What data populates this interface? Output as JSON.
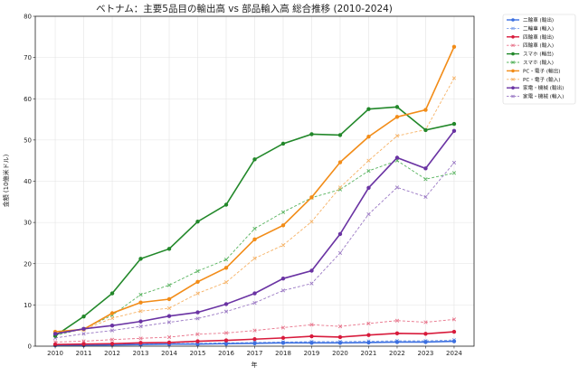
{
  "chart_data": {
    "type": "line",
    "title": "ベトナム：主要5品目の輸出高 vs 部品輸入高 総合推移 (2010-2024)",
    "xlabel": "年",
    "ylabel": "金額 (10億米ドル)",
    "x": [
      2010,
      2011,
      2012,
      2013,
      2014,
      2015,
      2016,
      2017,
      2018,
      2019,
      2020,
      2021,
      2022,
      2023,
      2024
    ],
    "ylim": [
      0,
      80
    ],
    "yticks": [
      0,
      10,
      20,
      30,
      40,
      50,
      60,
      70,
      80
    ],
    "grid": true,
    "legend_position": "outside-top-right",
    "series": [
      {
        "name": "二輪車 (輸出)",
        "color": "#3b6fe0",
        "style": "solid",
        "marker": "dot",
        "values": [
          0.2,
          0.2,
          0.3,
          0.4,
          0.5,
          0.5,
          0.6,
          0.7,
          0.8,
          0.8,
          0.8,
          0.9,
          1.0,
          1.0,
          1.2
        ]
      },
      {
        "name": "二輪車 (輸入)",
        "color": "#7da0ec",
        "style": "dashed",
        "marker": "x",
        "values": [
          0.3,
          0.3,
          0.4,
          0.5,
          0.6,
          0.7,
          0.8,
          0.9,
          1.0,
          1.1,
          1.1,
          1.2,
          1.3,
          1.3,
          1.5
        ]
      },
      {
        "name": "四輪車 (輸出)",
        "color": "#d81b3c",
        "style": "solid",
        "marker": "dot",
        "values": [
          0.4,
          0.5,
          0.6,
          0.8,
          0.9,
          1.2,
          1.4,
          1.7,
          2.0,
          2.4,
          2.2,
          2.7,
          3.1,
          3.0,
          3.5
        ]
      },
      {
        "name": "四輪車 (輸入)",
        "color": "#e8738a",
        "style": "dashed",
        "marker": "x",
        "values": [
          1.0,
          1.2,
          1.6,
          1.9,
          2.2,
          2.9,
          3.2,
          3.8,
          4.5,
          5.2,
          4.8,
          5.5,
          6.2,
          5.8,
          6.5
        ]
      },
      {
        "name": "スマホ (輸出)",
        "color": "#22882a",
        "style": "solid",
        "marker": "dot",
        "values": [
          2.5,
          7.2,
          12.8,
          21.2,
          23.6,
          30.2,
          34.3,
          45.3,
          49.1,
          51.4,
          51.2,
          57.5,
          58.0,
          52.4,
          53.9
        ]
      },
      {
        "name": "スマホ (輸入)",
        "color": "#57b35e",
        "style": "dashed",
        "marker": "x",
        "values": [
          2.6,
          4.2,
          7.5,
          12.5,
          14.8,
          18.2,
          21.0,
          28.5,
          32.5,
          36.0,
          38.0,
          42.5,
          45.0,
          40.5,
          42.0
        ]
      },
      {
        "name": "PC・電子 (輸出)",
        "color": "#f28c18",
        "style": "solid",
        "marker": "dot",
        "values": [
          3.5,
          4.1,
          8.0,
          10.6,
          11.4,
          15.6,
          19.0,
          25.9,
          29.3,
          36.1,
          44.6,
          50.8,
          55.6,
          57.3,
          72.6
        ]
      },
      {
        "name": "PC・電子 (輸入)",
        "color": "#f6b163",
        "style": "dashed",
        "marker": "x",
        "values": [
          3.0,
          4.0,
          6.8,
          8.5,
          9.2,
          12.8,
          15.5,
          21.3,
          24.5,
          30.2,
          38.5,
          45.0,
          51.0,
          52.5,
          65.0
        ]
      },
      {
        "name": "家電・機械 (輸出)",
        "color": "#6a33a3",
        "style": "solid",
        "marker": "dot",
        "values": [
          3.0,
          4.2,
          5.0,
          6.0,
          7.3,
          8.2,
          10.2,
          12.8,
          16.4,
          18.3,
          27.2,
          38.4,
          45.7,
          43.1,
          52.2
        ]
      },
      {
        "name": "家電・機械 (輸入)",
        "color": "#9a78c4",
        "style": "dashed",
        "marker": "x",
        "values": [
          2.0,
          3.0,
          3.8,
          4.8,
          5.8,
          6.7,
          8.4,
          10.5,
          13.5,
          15.2,
          22.6,
          32.0,
          38.5,
          36.2,
          44.5
        ]
      }
    ]
  }
}
